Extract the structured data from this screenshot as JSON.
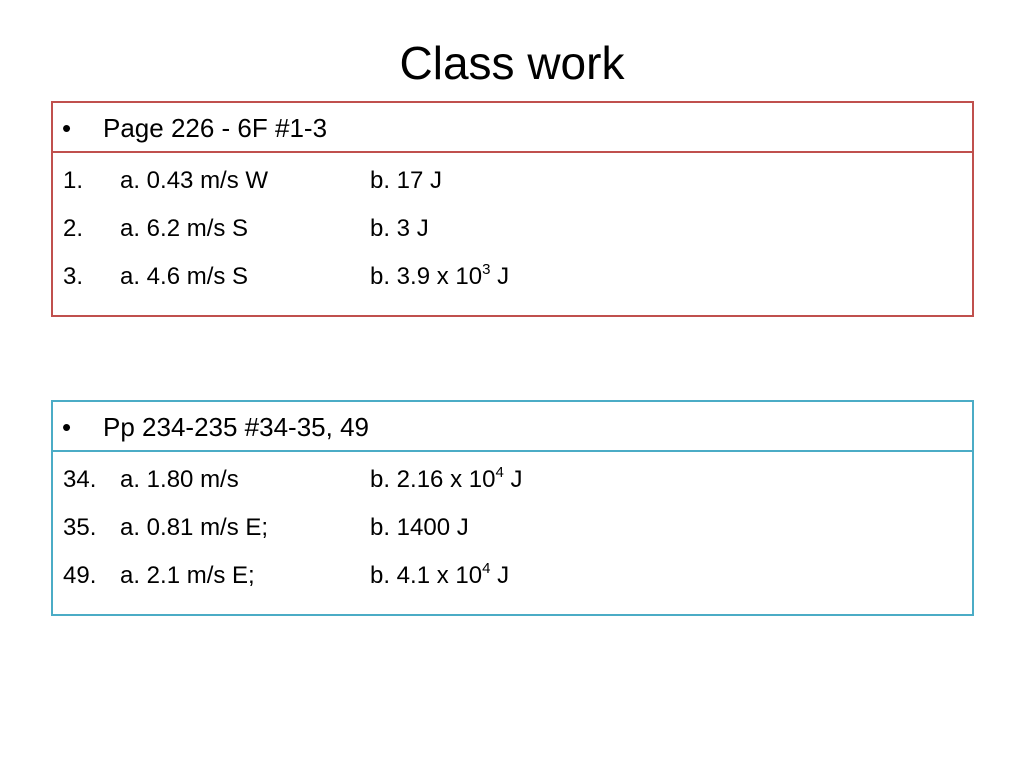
{
  "title": "Class work",
  "sections": [
    {
      "header": "Page 226 - 6F #1-3",
      "color": "#c0504d",
      "items": [
        {
          "number": "1.",
          "a": "a. 0.43 m/s W",
          "b": "b. 17 J"
        },
        {
          "number": "2.",
          "a": "a. 6.2 m/s S",
          "b": "b. 3 J"
        },
        {
          "number": "3.",
          "a": "a. 4.6 m/s S",
          "b": "b. 3.9 x 10",
          "exponent": "3",
          "unit": " J"
        }
      ]
    },
    {
      "header": "Pp 234-235 #34-35, 49",
      "color": "#4bacc6",
      "items": [
        {
          "number": "34.",
          "a": "a. 1.80 m/s",
          "b": "b. 2.16 x 10",
          "exponent": "4",
          "unit": " J"
        },
        {
          "number": "35.",
          "a": "a. 0.81 m/s E;",
          "b": "b. 1400 J"
        },
        {
          "number": "49.",
          "a": "a. 2.1 m/s E;",
          "b": "b. 4.1 x 10",
          "exponent": "4",
          "unit": " J"
        }
      ]
    }
  ]
}
